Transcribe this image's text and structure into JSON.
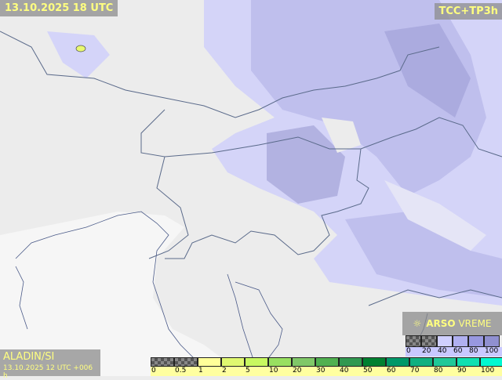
{
  "title": "13.10.2025 18 UTC",
  "product": "TCC+TP3h",
  "model": {
    "name": "ALADIN/SI",
    "run": "13.10.2025 12 UTC +006 h"
  },
  "logo": {
    "bold": "ARSO",
    "rest": "VREME",
    "icon": "sun-cloud-icon"
  },
  "precip_legend": {
    "labels": [
      "0",
      "0.5",
      "1",
      "2",
      "5",
      "10",
      "20",
      "30",
      "40",
      "50",
      "60",
      "70",
      "80",
      "90",
      "100"
    ],
    "colors": [
      "checker",
      "checker",
      "#ffff99",
      "#e0f870",
      "#c8f860",
      "#98e060",
      "#80c868",
      "#50b050",
      "#309850",
      "#008030",
      "#009868",
      "#10b080",
      "#20c898",
      "#10e0b0",
      "#00f8d0"
    ]
  },
  "cloud_legend": {
    "labels": [
      "0",
      "20",
      "40",
      "60",
      "80",
      "100"
    ],
    "colors": [
      "checker",
      "checker",
      "#d0d0ff",
      "#b0b0f0",
      "#9898e0",
      "#9090d0"
    ]
  }
}
